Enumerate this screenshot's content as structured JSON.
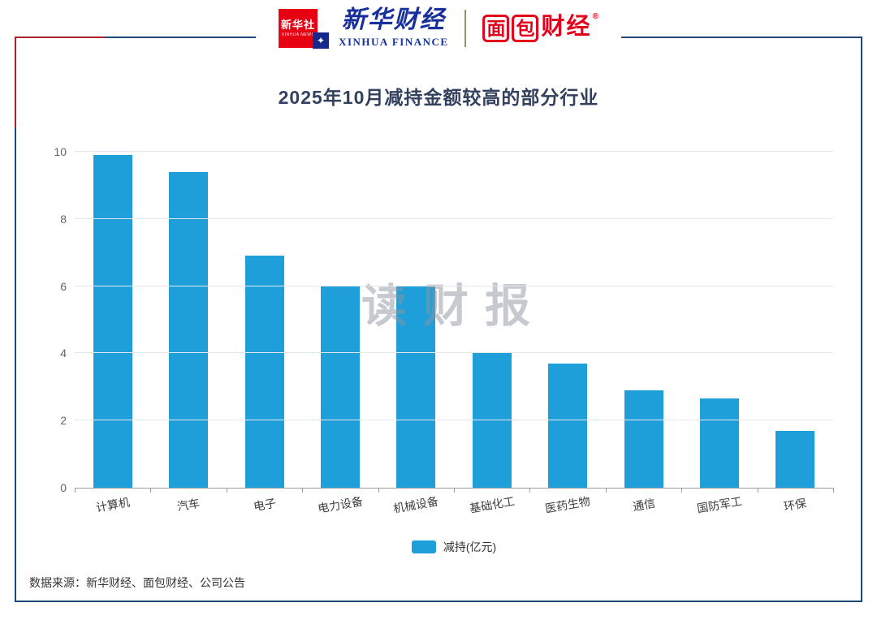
{
  "header": {
    "xinhua_news_cn": "新华社",
    "xinhua_news_en": "XINHUA NEWS",
    "xinhua_finance_cn": "新华财经",
    "xinhua_finance_en": "XINHUA FINANCE",
    "mianbao_char1": "面",
    "mianbao_char2": "包",
    "mianbao_rest": "财经",
    "reg_mark": "®"
  },
  "chart_data": {
    "type": "bar",
    "title": "2025年10月减持金额较高的部分行业",
    "categories": [
      "计算机",
      "汽车",
      "电子",
      "电力设备",
      "机械设备",
      "基础化工",
      "医药生物",
      "通信",
      "国防军工",
      "环保"
    ],
    "values": [
      9.9,
      9.4,
      6.9,
      6.0,
      6.0,
      4.0,
      3.7,
      2.9,
      2.65,
      1.7
    ],
    "series_name": "减持(亿元)",
    "ylim": [
      0,
      10
    ],
    "yticks": [
      0,
      2,
      4,
      6,
      8,
      10
    ],
    "bar_color": "#1E9FD9",
    "grid": true,
    "legend_position": "bottom"
  },
  "watermark": "读财报",
  "footer": {
    "source": "数据来源：新华财经、面包财经、公司公告"
  },
  "colors": {
    "frame_border": "#1E4878",
    "frame_accent": "#A8242A",
    "title_text": "#33415E",
    "xinhua_red": "#E60012",
    "finance_blue": "#17309C",
    "mianbao_red": "#E3001B"
  }
}
